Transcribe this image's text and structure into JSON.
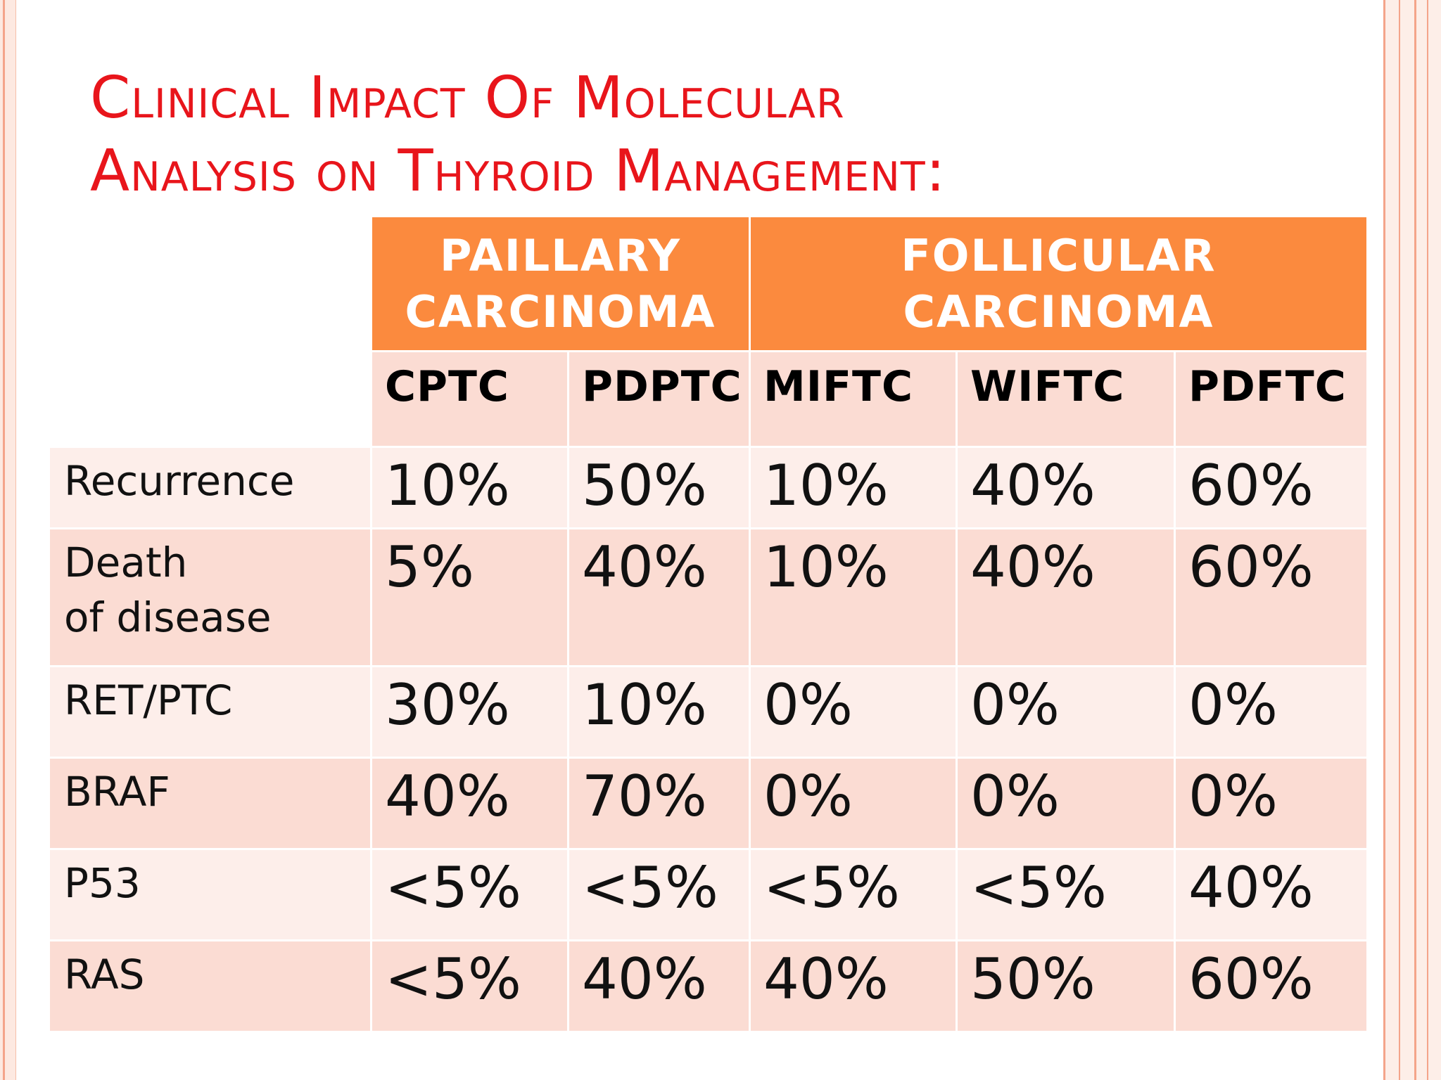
{
  "slide": {
    "title_line1": "Clinical Impact Of Molecular",
    "title_line2": "Analysis on Thyroid Management:"
  },
  "table": {
    "groups": [
      "PAILLARY CARCINOMA",
      "FOLLICULAR CARCINOMA"
    ],
    "group_lines": [
      [
        "PAILLARY",
        "CARCINOMA"
      ],
      [
        "FOLLICULAR",
        "CARCINOMA"
      ]
    ],
    "subtypes": [
      "CPTC",
      "PDPTC",
      "MIFTC",
      "WIFTC",
      "PDFTC"
    ],
    "rows": [
      {
        "label_lines": [
          "Recurrence"
        ],
        "values": [
          "10%",
          "50%",
          "10%",
          "40%",
          "60%"
        ]
      },
      {
        "label_lines": [
          "Death",
          "of disease"
        ],
        "values": [
          "5%",
          "40%",
          "10%",
          "40%",
          "60%"
        ]
      },
      {
        "label_lines": [
          "RET/PTC"
        ],
        "values": [
          "30%",
          "10%",
          "0%",
          "0%",
          "0%"
        ]
      },
      {
        "label_lines": [
          "BRAF"
        ],
        "values": [
          "40%",
          "70%",
          "0%",
          "0%",
          "0%"
        ]
      },
      {
        "label_lines": [
          "P53"
        ],
        "values": [
          "<5%",
          "<5%",
          "<5%",
          "<5%",
          "40%"
        ]
      },
      {
        "label_lines": [
          "RAS"
        ],
        "values": [
          "<5%",
          "40%",
          "40%",
          "50%",
          "60%"
        ]
      }
    ]
  },
  "colors": {
    "title": "#e8151b",
    "header": "#fb8a3e",
    "row_light": "#fdeeea",
    "row_dark": "#fbdcd3"
  }
}
